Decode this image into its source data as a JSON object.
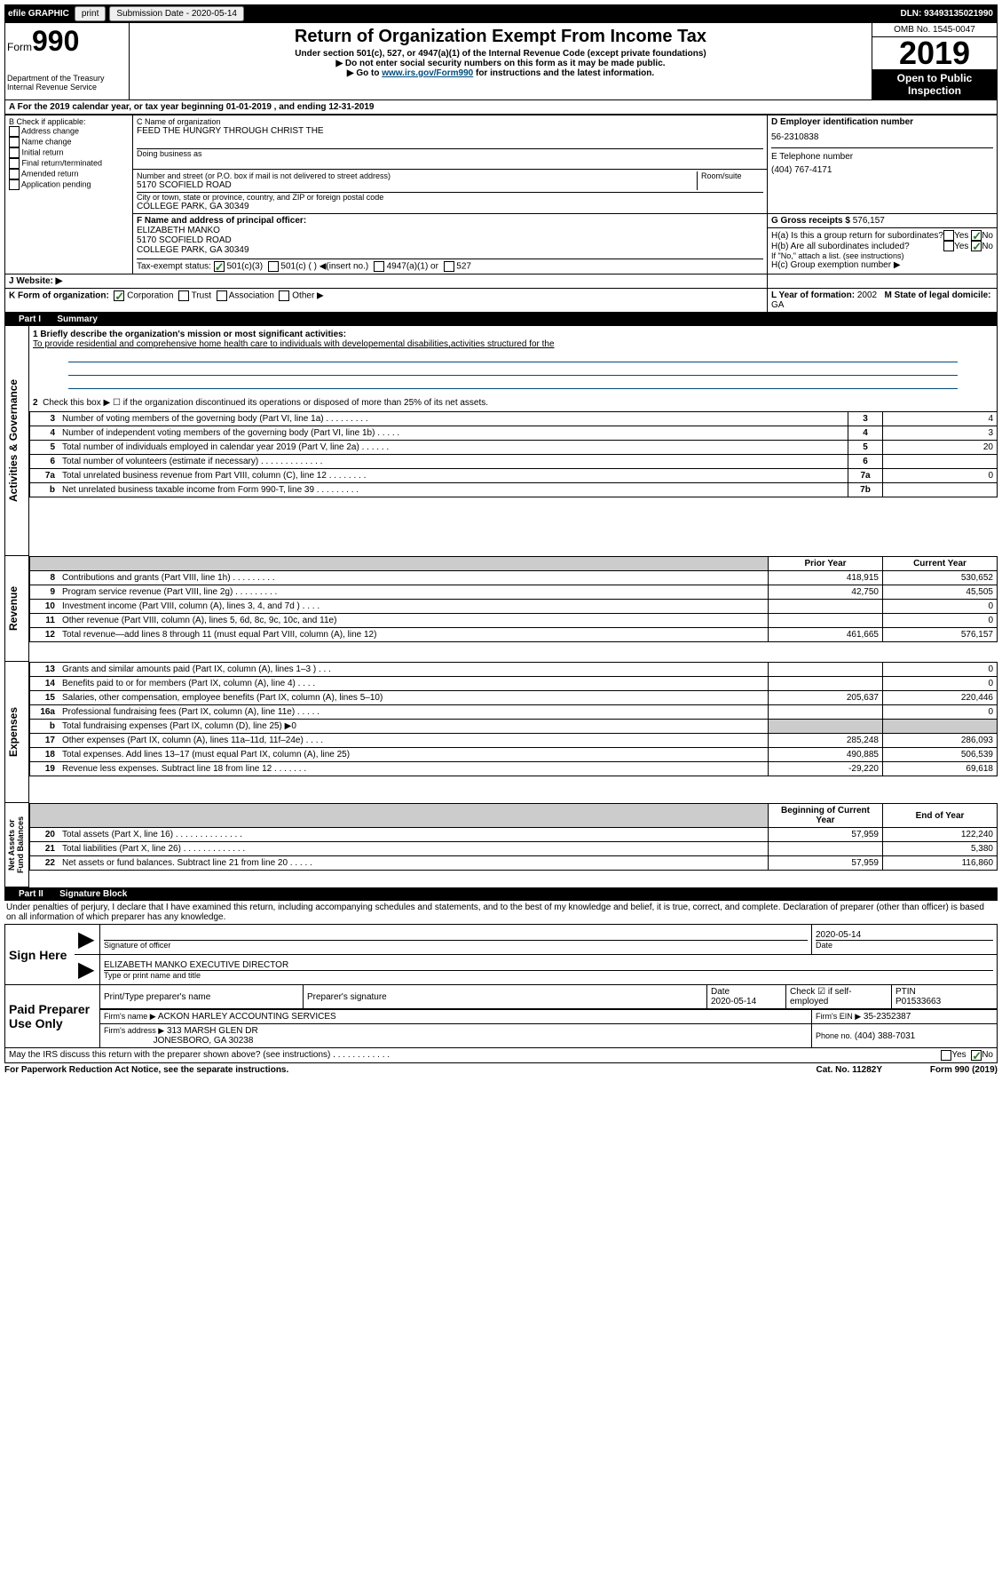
{
  "topbar": {
    "efile": "efile GRAPHIC",
    "print": "print",
    "subdate_label": "Submission Date - 2020-05-14",
    "dln": "DLN: 93493135021990"
  },
  "header": {
    "form_label": "Form",
    "form_no": "990",
    "dept": "Department of the Treasury\nInternal Revenue Service",
    "title": "Return of Organization Exempt From Income Tax",
    "sub1": "Under section 501(c), 527, or 4947(a)(1) of the Internal Revenue Code (except private foundations)",
    "sub2": "▶ Do not enter social security numbers on this form as it may be made public.",
    "sub3_pre": "▶ Go to ",
    "sub3_link": "www.irs.gov/Form990",
    "sub3_post": " for instructions and the latest information.",
    "omb": "OMB No. 1545-0047",
    "year": "2019",
    "open": "Open to Public Inspection"
  },
  "lineA": "A For the 2019 calendar year, or tax year beginning 01-01-2019    , and ending 12-31-2019",
  "boxB": {
    "label": "B Check if applicable:",
    "opts": [
      "Address change",
      "Name change",
      "Initial return",
      "Final return/terminated",
      "Amended return",
      "Application pending"
    ]
  },
  "boxC": {
    "label": "C Name of organization",
    "name": "FEED THE HUNGRY THROUGH CHRIST THE",
    "dba_label": "Doing business as",
    "addr_label": "Number and street (or P.O. box if mail is not delivered to street address)",
    "room_label": "Room/suite",
    "addr": "5170 SCOFIELD ROAD",
    "city_label": "City or town, state or province, country, and ZIP or foreign postal code",
    "city": "COLLEGE PARK, GA  30349"
  },
  "boxD": {
    "label": "D Employer identification number",
    "val": "56-2310838"
  },
  "boxE": {
    "label": "E Telephone number",
    "val": "(404) 767-4171"
  },
  "boxG": {
    "label": "G Gross receipts $",
    "val": "576,157"
  },
  "boxF": {
    "label": "F  Name and address of principal officer:",
    "name": "ELIZABETH MANKO",
    "addr1": "5170 SCOFIELD ROAD",
    "addr2": "COLLEGE PARK, GA  30349"
  },
  "boxH": {
    "a": "H(a)  Is this a group return for subordinates?",
    "b": "H(b)  Are all subordinates included?",
    "note": "If \"No,\" attach a list. (see instructions)",
    "c": "H(c)  Group exemption number ▶"
  },
  "taxexempt": {
    "label": "Tax-exempt status:",
    "o1": "501(c)(3)",
    "o2": "501(c) (  ) ◀(insert no.)",
    "o3": "4947(a)(1) or",
    "o4": "527"
  },
  "boxJ": "J    Website: ▶",
  "boxK": "K Form of organization:",
  "k_opts": [
    "Corporation",
    "Trust",
    "Association",
    "Other ▶"
  ],
  "boxL": {
    "label": "L Year of formation:",
    "val": "2002"
  },
  "boxM": {
    "label": "M State of legal domicile:",
    "val": "GA"
  },
  "part1": {
    "title": "Part I",
    "name": "Summary",
    "l1_label": "1  Briefly describe the organization's mission or most significant activities:",
    "l1_text": "To provide residential and comprehensive home health care to individuals with developemental disabilities,activities structured for the",
    "l2": "Check this box ▶ ☐  if the organization discontinued its operations or disposed of more than 25% of its net assets.",
    "rows_top": [
      {
        "n": "3",
        "t": "Number of voting members of the governing body (Part VI, line 1a)   .   .   .   .   .   .   .   .   .",
        "b": "3",
        "v": "4"
      },
      {
        "n": "4",
        "t": "Number of independent voting members of the governing body (Part VI, line 1b)   .   .   .   .   .",
        "b": "4",
        "v": "3"
      },
      {
        "n": "5",
        "t": "Total number of individuals employed in calendar year 2019 (Part V, line 2a)   .   .   .   .   .   .",
        "b": "5",
        "v": "20"
      },
      {
        "n": "6",
        "t": "Total number of volunteers (estimate if necessary)   .   .   .   .   .   .   .   .   .   .   .   .   .",
        "b": "6",
        "v": ""
      },
      {
        "n": "7a",
        "t": "Total unrelated business revenue from Part VIII, column (C), line 12   .   .   .   .   .   .   .   .",
        "b": "7a",
        "v": "0"
      },
      {
        "n": "b",
        "t": "Net unrelated business taxable income from Form 990-T, line 39   .   .   .   .   .   .   .   .   .",
        "b": "7b",
        "v": ""
      }
    ],
    "col_prior": "Prior Year",
    "col_current": "Current Year",
    "col_begin": "Beginning of Current Year",
    "col_end": "End of Year",
    "rev": [
      {
        "n": "8",
        "t": "Contributions and grants (Part VIII, line 1h)   .   .   .   .   .   .   .   .   .",
        "p": "418,915",
        "c": "530,652"
      },
      {
        "n": "9",
        "t": "Program service revenue (Part VIII, line 2g)   .   .   .   .   .   .   .   .   .",
        "p": "42,750",
        "c": "45,505"
      },
      {
        "n": "10",
        "t": "Investment income (Part VIII, column (A), lines 3, 4, and 7d )   .   .   .   .",
        "p": "",
        "c": "0"
      },
      {
        "n": "11",
        "t": "Other revenue (Part VIII, column (A), lines 5, 6d, 8c, 9c, 10c, and 11e)",
        "p": "",
        "c": "0"
      },
      {
        "n": "12",
        "t": "Total revenue—add lines 8 through 11 (must equal Part VIII, column (A), line 12)",
        "p": "461,665",
        "c": "576,157"
      }
    ],
    "exp": [
      {
        "n": "13",
        "t": "Grants and similar amounts paid (Part IX, column (A), lines 1–3 )   .   .   .",
        "p": "",
        "c": "0"
      },
      {
        "n": "14",
        "t": "Benefits paid to or for members (Part IX, column (A), line 4)   .   .   .   .",
        "p": "",
        "c": "0"
      },
      {
        "n": "15",
        "t": "Salaries, other compensation, employee benefits (Part IX, column (A), lines 5–10)",
        "p": "205,637",
        "c": "220,446"
      },
      {
        "n": "16a",
        "t": "Professional fundraising fees (Part IX, column (A), line 11e)   .   .   .   .   .",
        "p": "",
        "c": "0"
      },
      {
        "n": "b",
        "t": "Total fundraising expenses (Part IX, column (D), line 25) ▶0",
        "p": "shade",
        "c": "shade"
      },
      {
        "n": "17",
        "t": "Other expenses (Part IX, column (A), lines 11a–11d, 11f–24e)   .   .   .   .",
        "p": "285,248",
        "c": "286,093"
      },
      {
        "n": "18",
        "t": "Total expenses. Add lines 13–17 (must equal Part IX, column (A), line 25)",
        "p": "490,885",
        "c": "506,539"
      },
      {
        "n": "19",
        "t": "Revenue less expenses. Subtract line 18 from line 12   .   .   .   .   .   .   .",
        "p": "-29,220",
        "c": "69,618"
      }
    ],
    "net": [
      {
        "n": "20",
        "t": "Total assets (Part X, line 16)   .   .   .   .   .   .   .   .   .   .   .   .   .   .",
        "p": "57,959",
        "c": "122,240"
      },
      {
        "n": "21",
        "t": "Total liabilities (Part X, line 26)   .   .   .   .   .   .   .   .   .   .   .   .   .",
        "p": "",
        "c": "5,380"
      },
      {
        "n": "22",
        "t": "Net assets or fund balances. Subtract line 21 from line 20   .   .   .   .   .",
        "p": "57,959",
        "c": "116,860"
      }
    ]
  },
  "part2": {
    "title": "Part II",
    "name": "Signature Block",
    "decl": "Under penalties of perjury, I declare that I have examined this return, including accompanying schedules and statements, and to the best of my knowledge and belief, it is true, correct, and complete. Declaration of preparer (other than officer) is based on all information of which preparer has any knowledge.",
    "sign_here": "Sign Here",
    "sig_officer": "Signature of officer",
    "date": "2020-05-14",
    "date_label": "Date",
    "officer_name": "ELIZABETH MANKO  EXECUTIVE DIRECTOR",
    "type_name": "Type or print name and title",
    "paid": "Paid Preparer Use Only",
    "prep_name_label": "Print/Type preparer's name",
    "prep_sig_label": "Preparer's signature",
    "prep_date": "2020-05-14",
    "check_self": "Check ☑ if self-employed",
    "ptin_label": "PTIN",
    "ptin": "P01533663",
    "firm_name_label": "Firm's name    ▶",
    "firm_name": "ACKON HARLEY ACCOUNTING SERVICES",
    "firm_ein_label": "Firm's EIN ▶",
    "firm_ein": "35-2352387",
    "firm_addr_label": "Firm's address ▶",
    "firm_addr1": "313 MARSH GLEN DR",
    "firm_addr2": "JONESBORO, GA  30238",
    "phone_label": "Phone no.",
    "phone": "(404) 388-7031",
    "discuss": "May the IRS discuss this return with the preparer shown above? (see instructions)   .   .   .   .   .   .   .   .   .   .   .   ."
  },
  "footer": {
    "pra": "For Paperwork Reduction Act Notice, see the separate instructions.",
    "cat": "Cat. No. 11282Y",
    "form": "Form 990 (2019)"
  },
  "yes": "Yes",
  "no": "No"
}
